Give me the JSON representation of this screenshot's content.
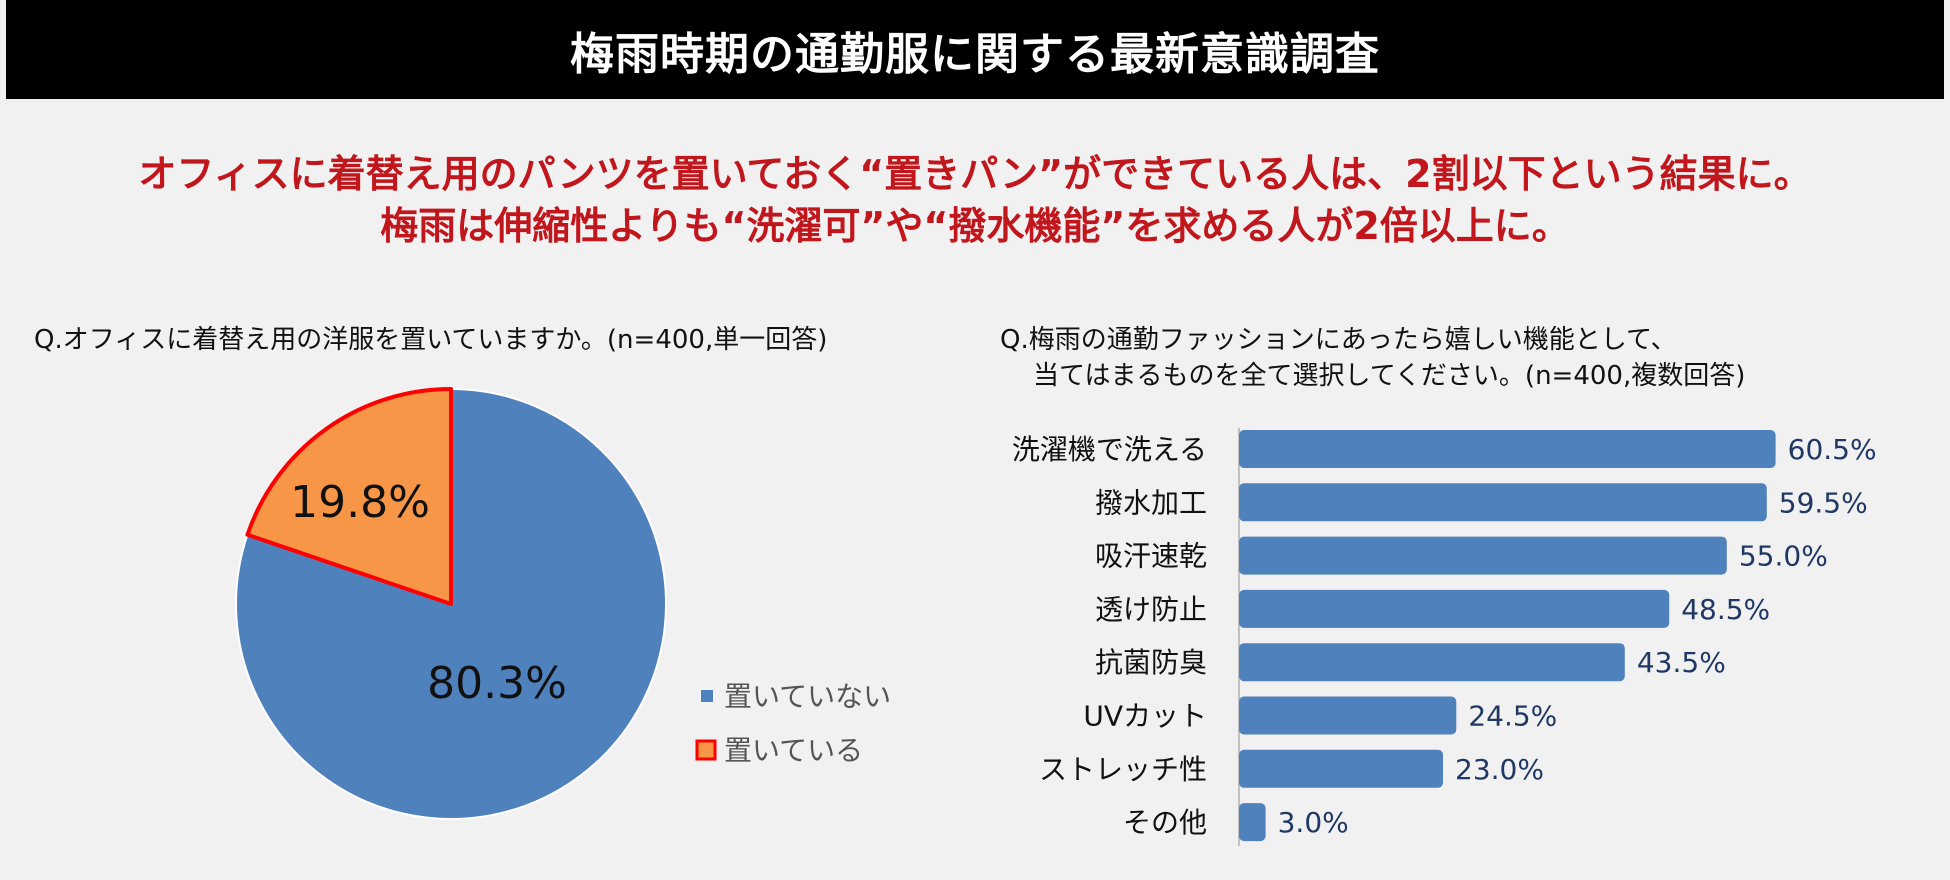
{
  "header": {
    "title": "梅雨時期の通勤服に関する最新意識調査"
  },
  "headline": {
    "line1": "オフィスに着替え用のパンツを置いておく“置きパン”ができている人は、2割以下という結果に。",
    "line2": "梅雨は伸縮性よりも“洗濯可”や“撥水機能”を求める人が2倍以上に。"
  },
  "colors": {
    "accent_red": "#c0161c",
    "bar_blue": "#4f81bd",
    "pie_orange": "#f79646",
    "highlight_red": "#ff0000"
  },
  "chart_data": [
    {
      "type": "pie",
      "title": "Q.オフィスに着替え用の洋服を置いていますか。(n=400,単一回答)",
      "slices": [
        {
          "label": "置いていない",
          "value": 80.3,
          "display": "80.3%",
          "color": "#4f81bd"
        },
        {
          "label": "置いている",
          "value": 19.8,
          "display": "19.8%",
          "color": "#f79646"
        }
      ],
      "legend_position": "right"
    },
    {
      "type": "bar",
      "orientation": "horizontal",
      "title_line1": "Q.梅雨の通勤ファッションにあったら嬉しい機能として、",
      "title_line2": "当てはまるものを全て選択してください。(n=400,複数回答)",
      "categories": [
        "洗濯機で洗える",
        "撥水加工",
        "吸汗速乾",
        "透け防止",
        "抗菌防臭",
        "UVカット",
        "ストレッチ性",
        "その他"
      ],
      "values": [
        60.5,
        59.5,
        55.0,
        48.5,
        43.5,
        24.5,
        23.0,
        3.0
      ],
      "labels": [
        "60.5%",
        "59.5%",
        "55.0%",
        "48.5%",
        "43.5%",
        "24.5%",
        "23.0%",
        "3.0%"
      ],
      "color": "#4f81bd"
    }
  ]
}
